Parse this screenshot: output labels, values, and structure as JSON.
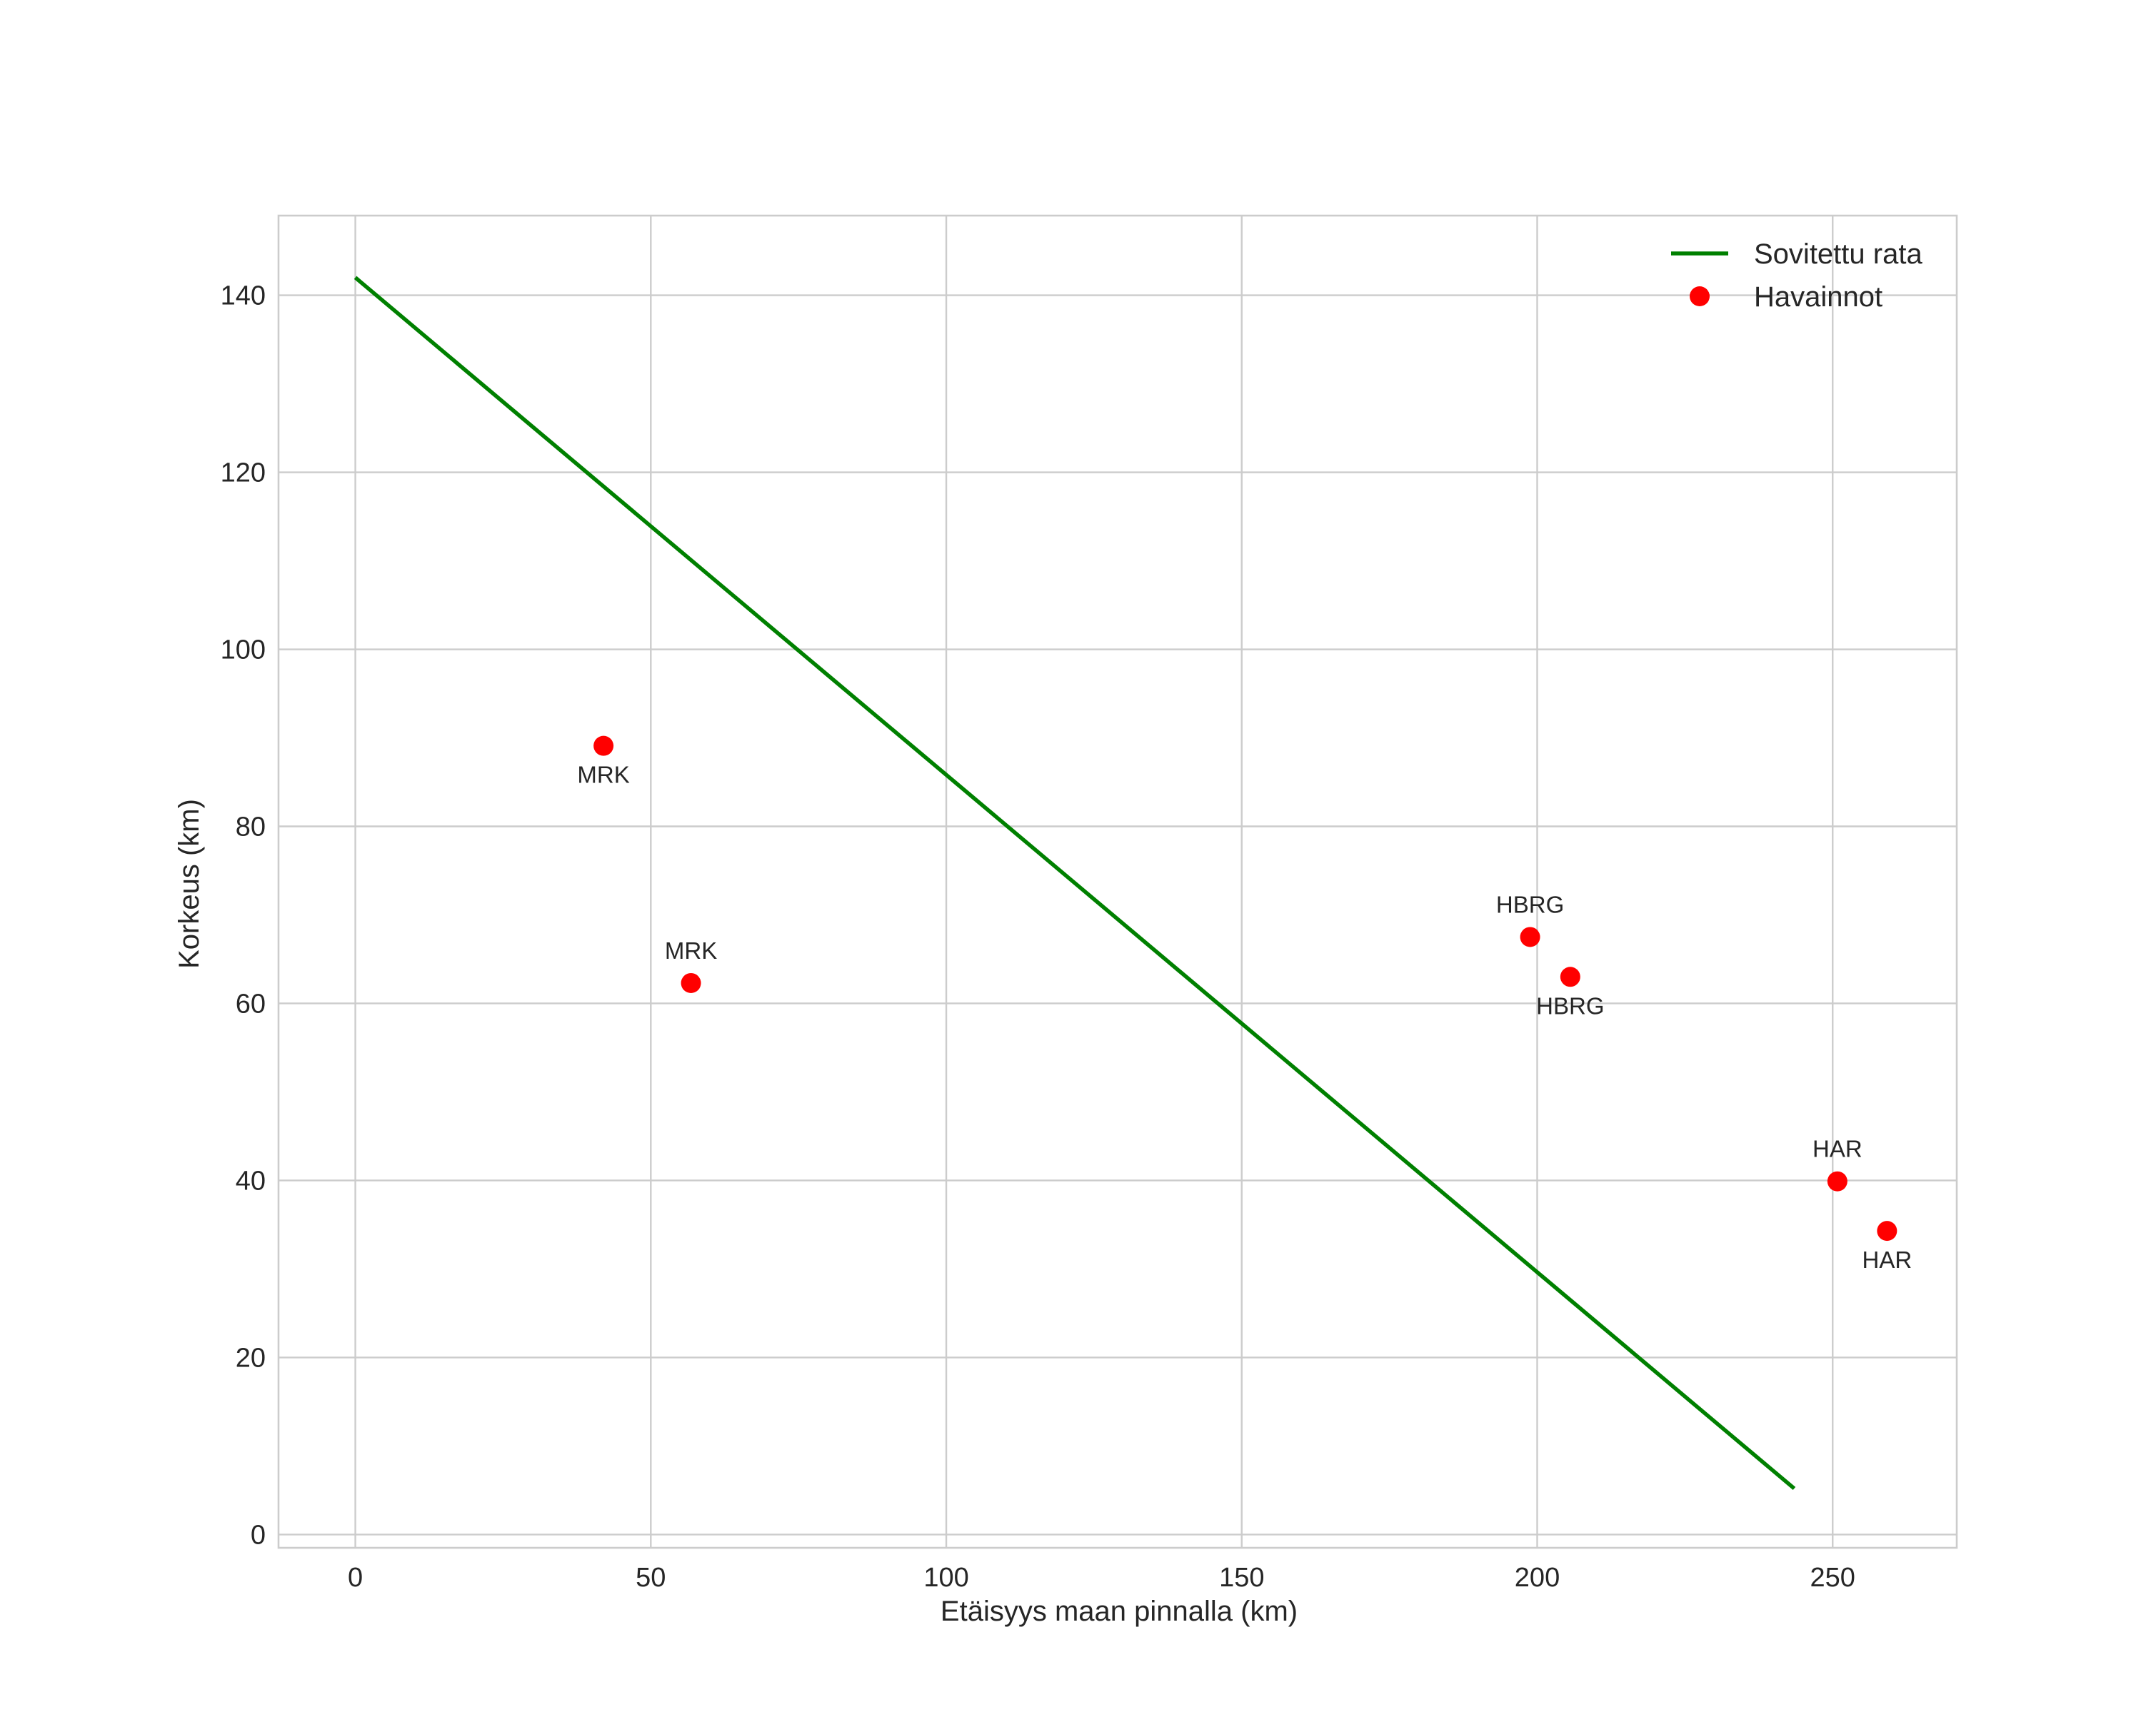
{
  "chart_data": {
    "type": "scatter",
    "title": "",
    "xlabel": "Etäisyys maan pinnalla (km)",
    "ylabel": "Korkeus (km)",
    "xlim": [
      -13,
      271
    ],
    "ylim": [
      -1.5,
      149
    ],
    "xticks": [
      0,
      50,
      100,
      150,
      200,
      250
    ],
    "yticks": [
      0,
      20,
      40,
      60,
      80,
      100,
      120,
      140
    ],
    "grid": true,
    "legend": {
      "location": "top-right",
      "entries": [
        {
          "label": "Sovitettu rata",
          "kind": "line",
          "color": "#008000"
        },
        {
          "label": "Havainnot",
          "kind": "marker",
          "color": "#ff0000"
        }
      ]
    },
    "series": [
      {
        "name": "Sovitettu rata",
        "type": "line",
        "color": "#008000",
        "x": [
          0,
          243.5
        ],
        "y": [
          142.0,
          5.2
        ]
      },
      {
        "name": "Havainnot",
        "type": "scatter",
        "color": "#ff0000",
        "points": [
          {
            "x": 42.0,
            "y": 89.1,
            "label": "MRK",
            "label_position": "below"
          },
          {
            "x": 56.8,
            "y": 62.3,
            "label": "MRK",
            "label_position": "above"
          },
          {
            "x": 198.8,
            "y": 67.5,
            "label": "HBRG",
            "label_position": "above"
          },
          {
            "x": 205.6,
            "y": 63.0,
            "label": "HBRG",
            "label_position": "below"
          },
          {
            "x": 250.8,
            "y": 39.9,
            "label": "HAR",
            "label_position": "above"
          },
          {
            "x": 259.2,
            "y": 34.3,
            "label": "HAR",
            "label_position": "below"
          }
        ]
      }
    ]
  }
}
